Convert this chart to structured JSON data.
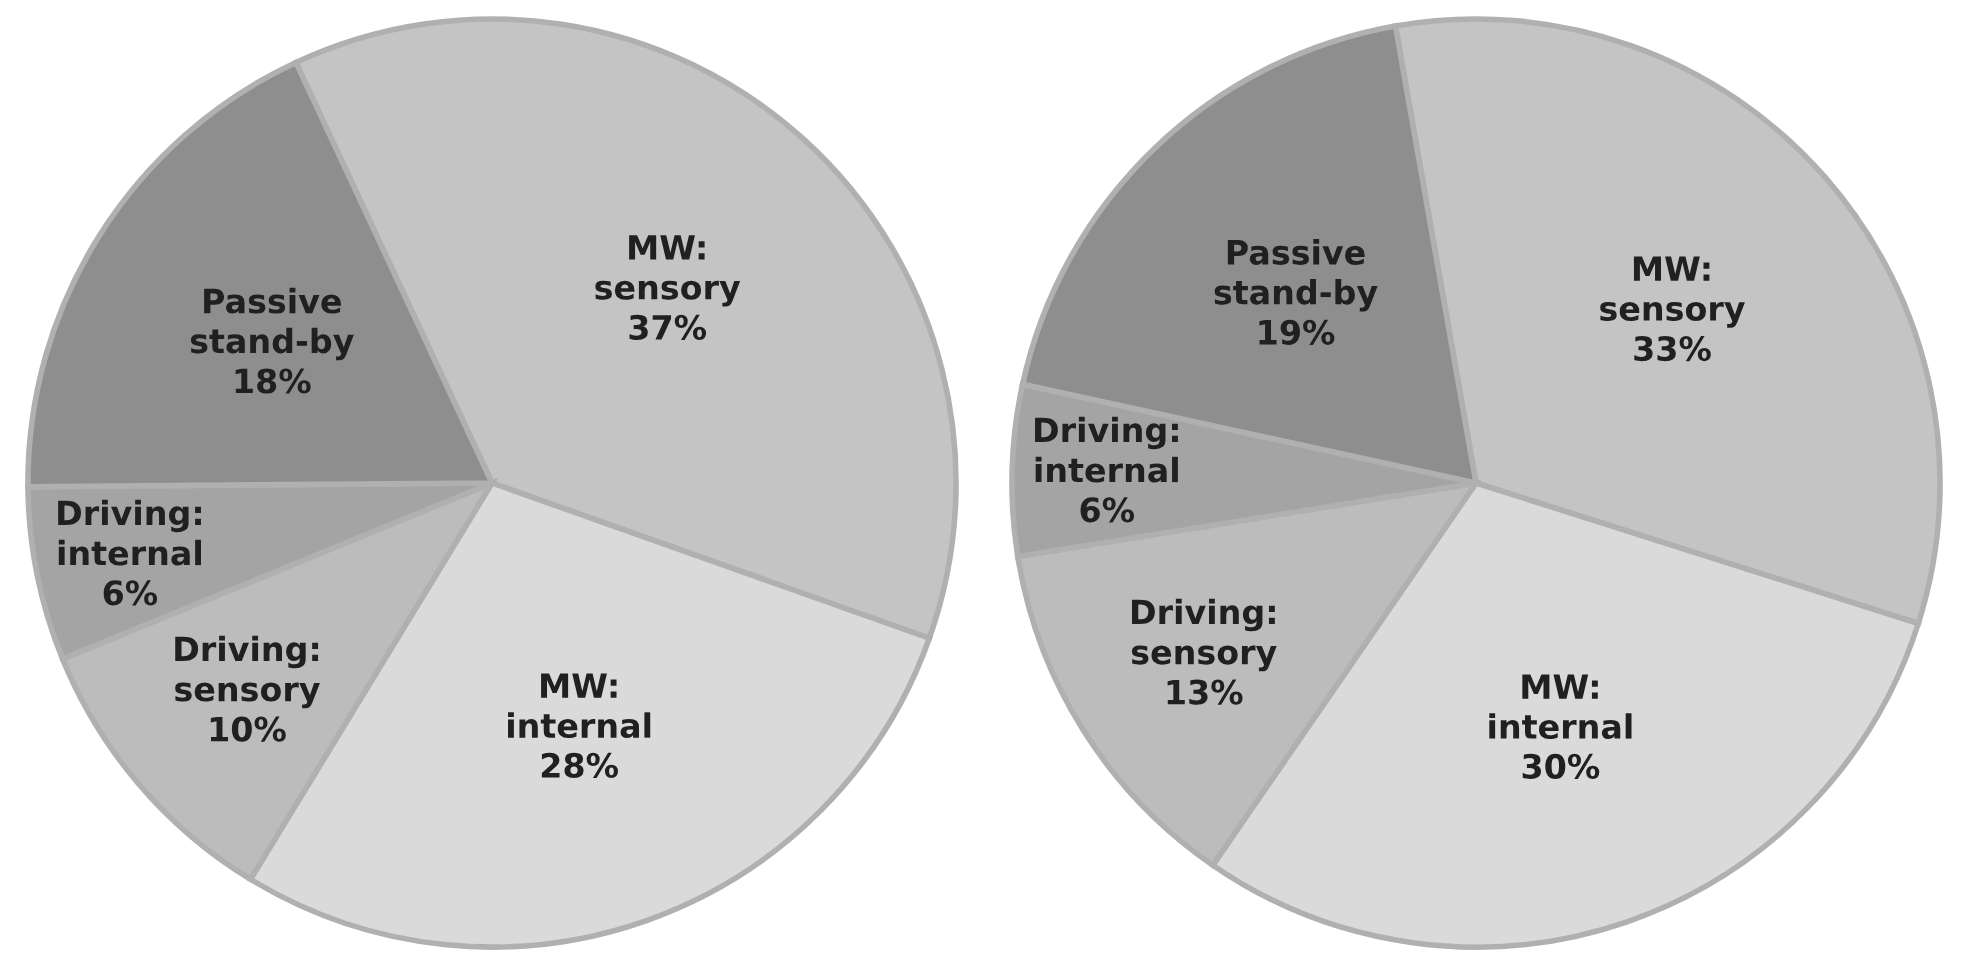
{
  "chart_data": [
    {
      "type": "pie",
      "categories": [
        "MW: sensory",
        "MW: internal",
        "Driving: sensory",
        "Driving: internal",
        "Passive stand-by"
      ],
      "values": [
        37,
        28,
        10,
        6,
        18
      ],
      "value_labels": [
        "37%",
        "28%",
        "10%",
        "6%",
        "18%"
      ],
      "colors": [
        "#c4c4c4",
        "#dadada",
        "#bcbcbc",
        "#a4a4a4",
        "#8e8e8e"
      ]
    },
    {
      "type": "pie",
      "categories": [
        "MW: sensory",
        "MW: internal",
        "Driving: sensory",
        "Driving: internal",
        "Passive stand-by"
      ],
      "values": [
        33,
        30,
        13,
        6,
        19
      ],
      "value_labels": [
        "33%",
        "30%",
        "13%",
        "6%",
        "19%"
      ],
      "colors": [
        "#c4c4c4",
        "#dadada",
        "#bcbcbc",
        "#a4a4a4",
        "#8e8e8e"
      ]
    }
  ]
}
